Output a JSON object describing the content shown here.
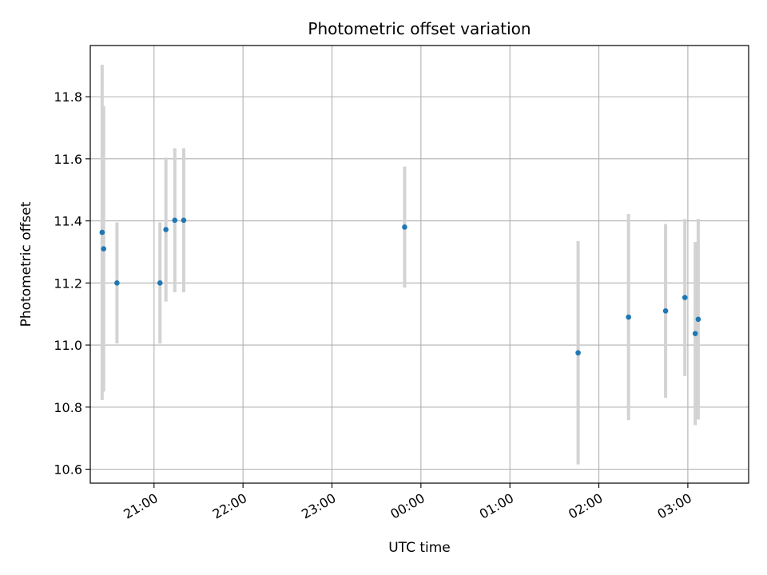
{
  "chart_data": {
    "type": "scatter",
    "title": "Photometric offset variation",
    "xlabel": "UTC time",
    "ylabel": "Photometric offset",
    "x_ticks": [
      "21:00",
      "22:00",
      "23:00",
      "00:00",
      "01:00",
      "02:00",
      "03:00"
    ],
    "y_ticks": [
      "10.6",
      "10.8",
      "11.0",
      "11.2",
      "11.4",
      "11.6",
      "11.8"
    ],
    "xlim": [
      "20:17",
      "03:41"
    ],
    "ylim": [
      10.555,
      11.965
    ],
    "grid": true,
    "legend": "none",
    "colors": {
      "points": "#1f77b4",
      "error_bars": "#d3d3d3",
      "grid": "#b0b0b0"
    },
    "points": [
      {
        "x": "20:25",
        "y": 11.363,
        "err": 0.54
      },
      {
        "x": "20:26",
        "y": 11.31,
        "err": 0.46
      },
      {
        "x": "20:35",
        "y": 11.2,
        "err": 0.195
      },
      {
        "x": "21:04",
        "y": 11.2,
        "err": 0.195
      },
      {
        "x": "21:08",
        "y": 11.372,
        "err": 0.232
      },
      {
        "x": "21:14",
        "y": 11.402,
        "err": 0.232
      },
      {
        "x": "21:20",
        "y": 11.402,
        "err": 0.232
      },
      {
        "x": "23:49",
        "y": 11.38,
        "err": 0.195
      },
      {
        "x": "01:46",
        "y": 10.975,
        "err": 0.36
      },
      {
        "x": "02:20",
        "y": 11.09,
        "err": 0.332
      },
      {
        "x": "02:45",
        "y": 11.11,
        "err": 0.28
      },
      {
        "x": "02:58",
        "y": 11.153,
        "err": 0.253
      },
      {
        "x": "03:05",
        "y": 11.037,
        "err": 0.295
      },
      {
        "x": "03:07",
        "y": 11.083,
        "err": 0.323
      }
    ]
  }
}
